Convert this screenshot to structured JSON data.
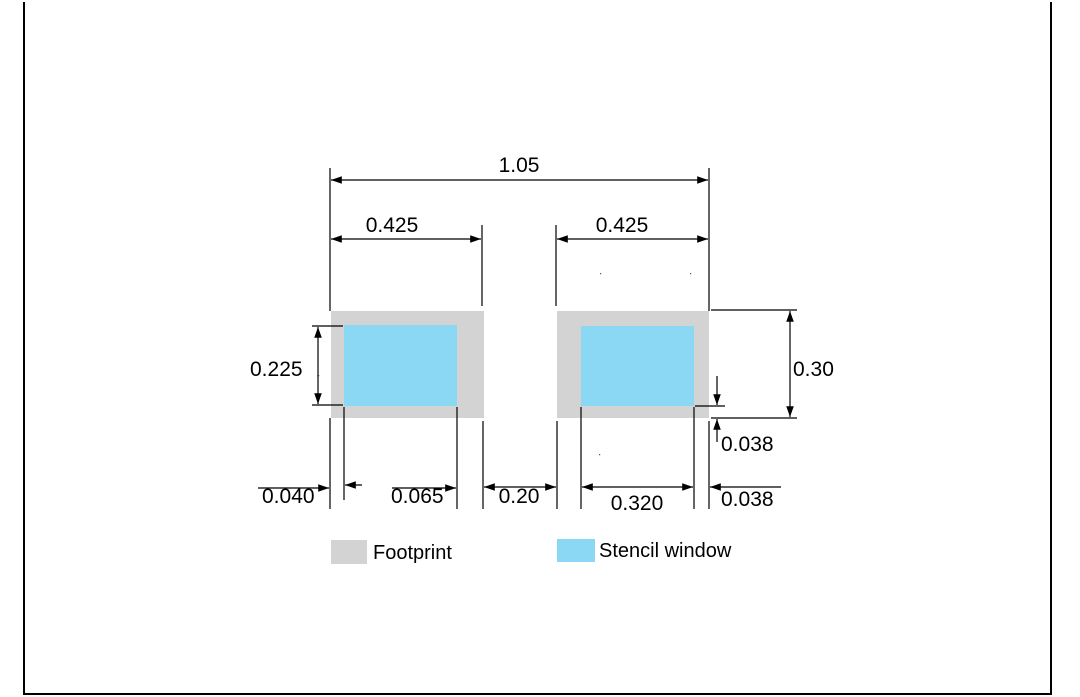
{
  "colors": {
    "footprint": "#d3d3d3",
    "stencil_window": "#8bd8f4",
    "line": "#000000"
  },
  "dimensions": {
    "overall_width": "1.05",
    "left_pad_width": "0.425",
    "right_pad_width": "0.425",
    "stencil_height": "0.225",
    "pad_height": "0.30",
    "right_bottom_inset": "0.038",
    "right_side_inset": "0.038",
    "left_side_inset": "0.040",
    "left_stencil_inner_gap": "0.065",
    "pad_gap": "0.20",
    "stencil_width": "0.320"
  },
  "legend": {
    "footprint_label": "Footprint",
    "stencil_label": "Stencil window"
  }
}
